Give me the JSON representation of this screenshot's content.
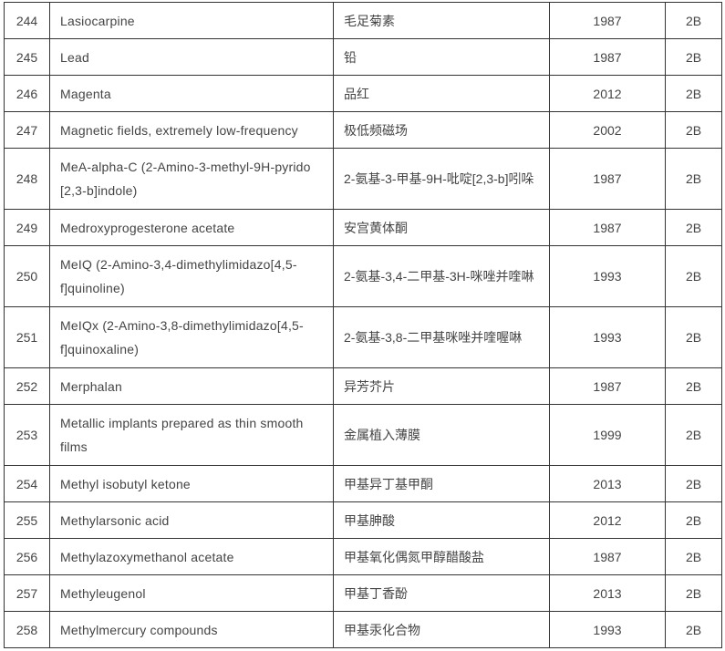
{
  "rows": [
    {
      "no": "244",
      "en": "Lasiocarpine",
      "zh": "毛足菊素",
      "year": "1987",
      "group": "2B"
    },
    {
      "no": "245",
      "en": "Lead",
      "zh": "铅",
      "year": "1987",
      "group": "2B"
    },
    {
      "no": "246",
      "en": "Magenta",
      "zh": "品红",
      "year": "2012",
      "group": "2B"
    },
    {
      "no": "247",
      "en": "Magnetic fields, extremely low-frequency",
      "zh": "极低频磁场",
      "year": "2002",
      "group": "2B"
    },
    {
      "no": "248",
      "en": "MeA-alpha-C (2-Amino-3-methyl-9H-pyrido [2,3-b]indole)",
      "zh": "2-氨基-3-甲基-9H-吡啶[2,3-b]吲哚",
      "year": "1987",
      "group": "2B"
    },
    {
      "no": "249",
      "en": "Medroxyprogesterone acetate",
      "zh": "安宫黄体酮",
      "year": "1987",
      "group": "2B"
    },
    {
      "no": "250",
      "en": "MeIQ (2-Amino-3,4-dimethylimidazo[4,5-f]quinoline)",
      "zh": " 2-氨基-3,4-二甲基-3H-咪唑并喹啉",
      "year": "1993",
      "group": "2B"
    },
    {
      "no": "251",
      "en": "MeIQx (2-Amino-3,8-dimethylimidazo[4,5-f]quinoxaline)",
      "zh": "2-氨基-3,8-二甲基咪唑并喹喔啉",
      "year": "1993",
      "group": "2B"
    },
    {
      "no": "252",
      "en": "Merphalan",
      "zh": "异芳芥片",
      "year": "1987",
      "group": "2B"
    },
    {
      "no": "253",
      "en": "Metallic implants prepared as thin smooth films",
      "zh": "金属植入薄膜",
      "year": "1999",
      "group": "2B"
    },
    {
      "no": "254",
      "en": "Methyl isobutyl ketone",
      "zh": "甲基异丁基甲酮",
      "year": "2013",
      "group": "2B"
    },
    {
      "no": "255",
      "en": "Methylarsonic acid",
      "zh": "甲基胂酸",
      "year": "2012",
      "group": "2B"
    },
    {
      "no": "256",
      "en": "Methylazoxymethanol acetate",
      "zh": "甲基氧化偶氮甲醇醋酸盐",
      "year": "1987",
      "group": "2B"
    },
    {
      "no": "257",
      "en": "Methyleugenol",
      "zh": "甲基丁香酚",
      "year": "2013",
      "group": "2B"
    },
    {
      "no": "258",
      "en": "Methylmercury compounds",
      "zh": "甲基汞化合物",
      "year": "1993",
      "group": "2B"
    }
  ]
}
